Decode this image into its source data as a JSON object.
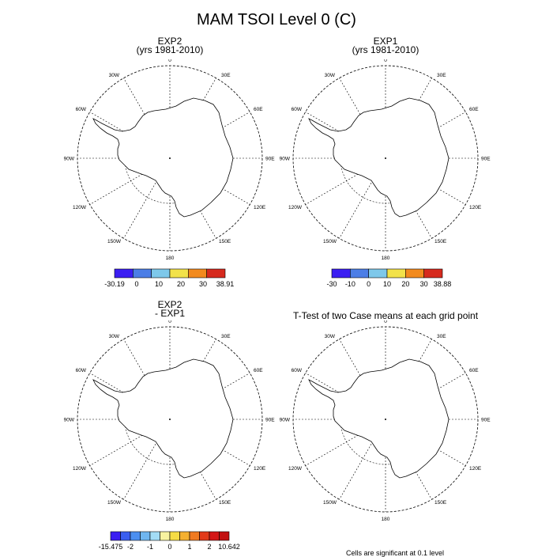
{
  "figure": {
    "title": "MAM TSOI Level 0 (C)"
  },
  "panels": [
    {
      "title_line1": "EXP2",
      "title_line2": "(yrs 1981-2010)"
    },
    {
      "title_line1": "EXP1",
      "title_line2": "(yrs 1981-2010)"
    },
    {
      "title_line1": "EXP2",
      "title_line2": "- EXP1"
    },
    {
      "title_line1": "T-Test of two Case means at each grid point",
      "title_line2": ""
    }
  ],
  "map_labels": {
    "north": "0",
    "south": "180",
    "east": "90E",
    "west": "90W",
    "e30": "30E",
    "e60": "60E",
    "e120": "120E",
    "e150": "150E",
    "w30": "30W",
    "w60": "60W",
    "w120": "120W",
    "w150": "150W"
  },
  "colorbars": [
    {
      "colors": [
        "#3b1ef2",
        "#4c7ee6",
        "#7ec8ea",
        "#f2e24a",
        "#f28a1e",
        "#d62a1e"
      ],
      "labels": [
        "-30.19",
        "0",
        "10",
        "20",
        "30",
        "38.91"
      ]
    },
    {
      "colors": [
        "#3b1ef2",
        "#4c7ee6",
        "#7ec8ea",
        "#f2e24a",
        "#f28a1e",
        "#d62a1e"
      ],
      "labels": [
        "-30",
        "-10",
        "0",
        "10",
        "20",
        "30",
        "38.88"
      ]
    },
    {
      "colors": [
        "#3b1ef2",
        "#3a5ef0",
        "#4c8ff0",
        "#6fb6f0",
        "#a3dcf5",
        "#f7f2a0",
        "#f5dc45",
        "#f5b030",
        "#f07a20",
        "#e23a1a",
        "#d41616",
        "#c21010"
      ],
      "labels": [
        "-15.475",
        "-2",
        "-1",
        "0",
        "1",
        "2",
        "10.642"
      ]
    }
  ],
  "footnote": "Cells are significant at 0.1 level"
}
